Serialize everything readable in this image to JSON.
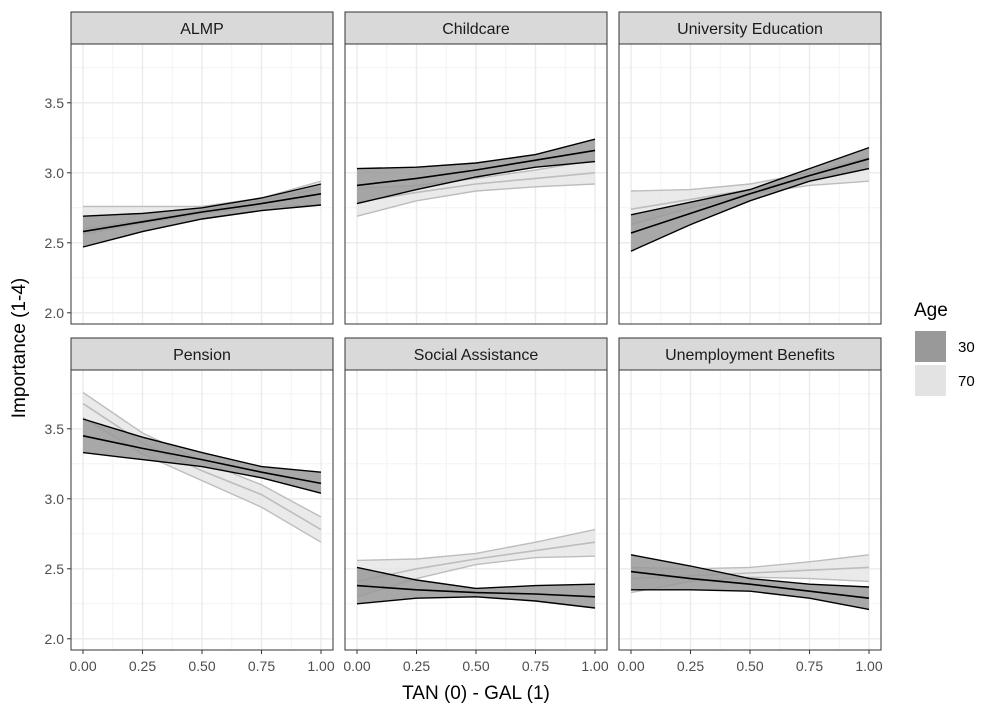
{
  "chart_data": {
    "type": "area",
    "facet_rows": 2,
    "facet_cols": 3,
    "xlabel": "TAN (0) - GAL (1)",
    "ylabel": "Importance (1-4)",
    "xlim": [
      0,
      1
    ],
    "ylim": [
      1.92,
      3.92
    ],
    "x_ticks": [
      0,
      0.25,
      0.5,
      0.75,
      1
    ],
    "x_tick_labels": [
      "0.00",
      "0.25",
      "0.50",
      "0.75",
      "1.00"
    ],
    "y_ticks": [
      2.0,
      2.5,
      3.0,
      3.5
    ],
    "y_tick_labels": [
      "2.0",
      "2.5",
      "3.0",
      "3.5"
    ],
    "grid": true,
    "legend": {
      "title": "Age",
      "placement": "right",
      "entries": [
        {
          "label": "30",
          "color": "#999999"
        },
        {
          "label": "70",
          "color": "#e3e3e3"
        }
      ]
    },
    "colors": {
      "age30_fill": "#999999",
      "age30_line": "#000000",
      "age70_fill": "#e3e3e3",
      "age70_line": "#bdbdbd",
      "strip_bg": "#d9d9d9",
      "grid_major": "#ebebeb",
      "grid_minor": "#f4f4f4"
    },
    "x": [
      0,
      0.25,
      0.5,
      0.75,
      1
    ],
    "panels": [
      {
        "title": "ALMP",
        "series": [
          {
            "name": "70",
            "mean": [
              2.6,
              2.66,
              2.73,
              2.8,
              2.89
            ],
            "lower": [
              2.56,
              2.64,
              2.71,
              2.76,
              2.77
            ],
            "upper": [
              2.76,
              2.76,
              2.76,
              2.82,
              2.94
            ]
          },
          {
            "name": "30",
            "mean": [
              2.58,
              2.65,
              2.72,
              2.78,
              2.85
            ],
            "lower": [
              2.47,
              2.58,
              2.67,
              2.73,
              2.77
            ],
            "upper": [
              2.69,
              2.71,
              2.75,
              2.82,
              2.92
            ]
          }
        ]
      },
      {
        "title": "Childcare",
        "series": [
          {
            "name": "70",
            "mean": [
              2.79,
              2.86,
              2.92,
              2.96,
              3.0
            ],
            "lower": [
              2.69,
              2.8,
              2.87,
              2.9,
              2.92
            ],
            "upper": [
              2.89,
              2.91,
              2.96,
              3.02,
              3.09
            ]
          },
          {
            "name": "30",
            "mean": [
              2.91,
              2.96,
              3.02,
              3.09,
              3.16
            ],
            "lower": [
              2.78,
              2.88,
              2.97,
              3.04,
              3.08
            ],
            "upper": [
              3.03,
              3.04,
              3.07,
              3.13,
              3.24
            ]
          }
        ]
      },
      {
        "title": "University Education",
        "series": [
          {
            "name": "70",
            "mean": [
              2.74,
              2.81,
              2.88,
              2.96,
              3.03
            ],
            "lower": [
              2.63,
              2.75,
              2.85,
              2.91,
              2.94
            ],
            "upper": [
              2.87,
              2.88,
              2.92,
              3.0,
              3.11
            ]
          },
          {
            "name": "30",
            "mean": [
              2.57,
              2.71,
              2.85,
              2.98,
              3.1
            ],
            "lower": [
              2.44,
              2.63,
              2.8,
              2.94,
              3.03
            ],
            "upper": [
              2.7,
              2.79,
              2.88,
              3.03,
              3.18
            ]
          }
        ]
      },
      {
        "title": "Pension",
        "series": [
          {
            "name": "70",
            "mean": [
              3.68,
              3.4,
              3.2,
              3.03,
              2.78
            ],
            "lower": [
              3.58,
              3.32,
              3.13,
              2.94,
              2.69
            ],
            "upper": [
              3.76,
              3.47,
              3.27,
              3.1,
              2.87
            ]
          },
          {
            "name": "30",
            "mean": [
              3.45,
              3.36,
              3.28,
              3.19,
              3.11
            ],
            "lower": [
              3.33,
              3.28,
              3.23,
              3.15,
              3.04
            ],
            "upper": [
              3.57,
              3.44,
              3.33,
              3.23,
              3.19
            ]
          }
        ]
      },
      {
        "title": "Social Assistance",
        "series": [
          {
            "name": "70",
            "mean": [
              2.41,
              2.5,
              2.57,
              2.63,
              2.69
            ],
            "lower": [
              2.3,
              2.43,
              2.53,
              2.58,
              2.59
            ],
            "upper": [
              2.56,
              2.57,
              2.61,
              2.69,
              2.78
            ]
          },
          {
            "name": "30",
            "mean": [
              2.38,
              2.35,
              2.33,
              2.32,
              2.3
            ],
            "lower": [
              2.25,
              2.29,
              2.3,
              2.27,
              2.22
            ],
            "upper": [
              2.51,
              2.42,
              2.36,
              2.38,
              2.39
            ]
          }
        ]
      },
      {
        "title": "Unemployment Benefits",
        "series": [
          {
            "name": "70",
            "mean": [
              2.43,
              2.45,
              2.47,
              2.49,
              2.51
            ],
            "lower": [
              2.33,
              2.41,
              2.44,
              2.43,
              2.41
            ],
            "upper": [
              2.51,
              2.5,
              2.51,
              2.55,
              2.6
            ]
          },
          {
            "name": "30",
            "mean": [
              2.48,
              2.43,
              2.39,
              2.34,
              2.29
            ],
            "lower": [
              2.35,
              2.35,
              2.34,
              2.29,
              2.21
            ],
            "upper": [
              2.6,
              2.52,
              2.43,
              2.39,
              2.37
            ]
          }
        ]
      }
    ]
  }
}
